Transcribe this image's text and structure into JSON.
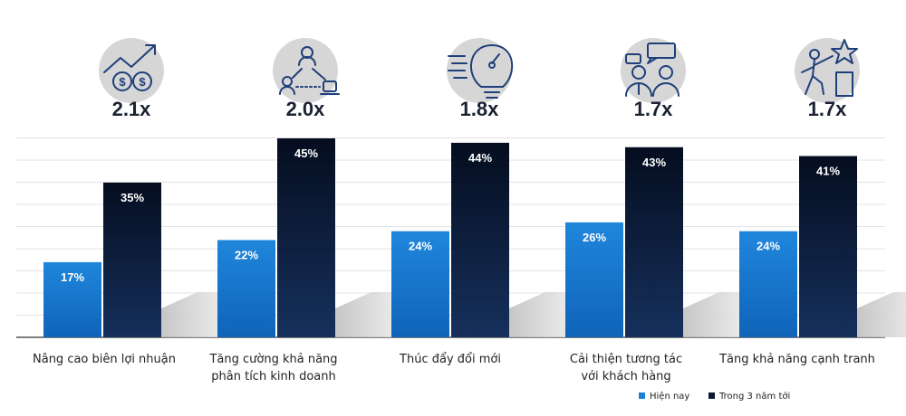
{
  "colors": {
    "current": "#1a7fd6",
    "future": "#0b1a33",
    "grid": "#e3e3e3",
    "icon_bg": "#d6d6d6",
    "icon_stroke": "#1f3f7a"
  },
  "chart_data": {
    "type": "bar",
    "title": "",
    "xlabel": "",
    "ylabel": "",
    "ylim": [
      0,
      50
    ],
    "grid": true,
    "legend_position": "bottom-right",
    "categories": [
      [
        "Nâng cao biên lợi nhuận"
      ],
      [
        "Tăng cường khả năng",
        "phân tích kinh doanh"
      ],
      [
        "Thúc đẩy đổi mới"
      ],
      [
        "Cải thiện tương tác",
        "với khách hàng"
      ],
      [
        "Tăng khả năng cạnh tranh"
      ]
    ],
    "multipliers": [
      "2.1x",
      "2.0x",
      "1.8x",
      "1.7x",
      "1.7x"
    ],
    "icons": [
      "money-growth-icon",
      "network-analysis-icon",
      "lightbulb-innovation-icon",
      "customer-conversation-icon",
      "competition-podium-icon"
    ],
    "series": [
      {
        "name": "Hiện nay",
        "values": [
          17,
          22,
          24,
          26,
          24
        ],
        "labels": [
          "17%",
          "22%",
          "24%",
          "26%",
          "24%"
        ]
      },
      {
        "name": "Trong 3 năm tới",
        "values": [
          35,
          45,
          44,
          43,
          41
        ],
        "labels": [
          "35%",
          "45%",
          "44%",
          "43%",
          "41%"
        ]
      }
    ]
  }
}
